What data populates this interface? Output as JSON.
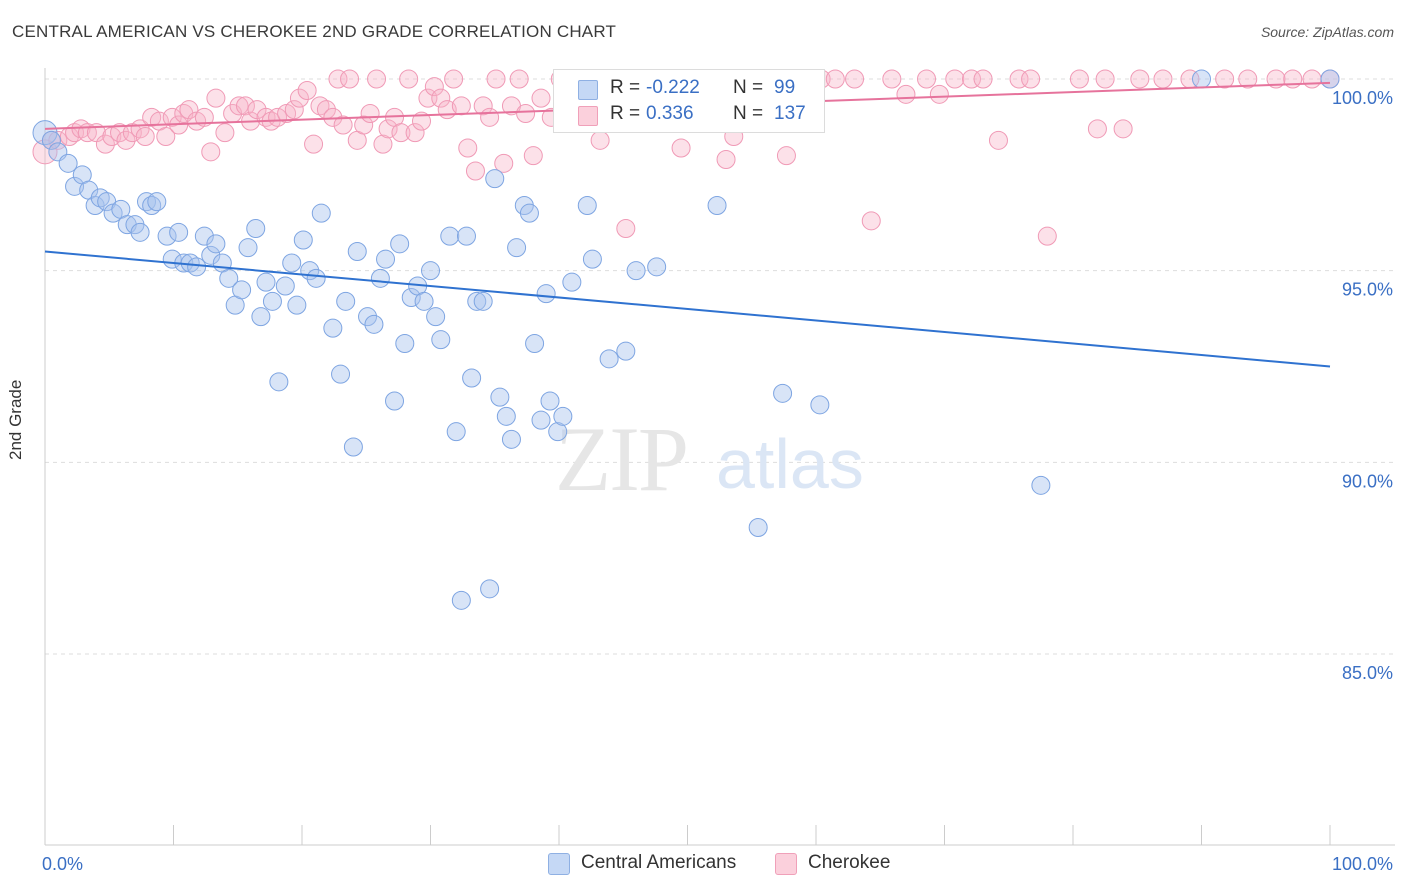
{
  "title": "CENTRAL AMERICAN VS CHEROKEE 2ND GRADE CORRELATION CHART",
  "source": "Source: ZipAtlas.com",
  "watermark": {
    "zip": "ZIP",
    "atlas": "atlas"
  },
  "legend": {
    "rows": [
      {
        "r_label": "R =",
        "r_value": "-0.222",
        "n_label": "N =",
        "n_value": "99",
        "color": "#a9c4ee"
      },
      {
        "r_label": "R =",
        "r_value": "0.336",
        "n_label": "N =",
        "n_value": "137",
        "color": "#f7b4c8"
      }
    ]
  },
  "bottom_legend": [
    "Central Americans",
    "Cherokee"
  ],
  "chart_data": {
    "type": "scatter",
    "title": "CENTRAL AMERICAN VS CHEROKEE 2ND GRADE CORRELATION CHART",
    "xlabel": "",
    "ylabel": "2nd Grade",
    "xlim": [
      0,
      100
    ],
    "ylim": [
      80.5,
      100.8
    ],
    "x_tick_labels": [
      "0.0%",
      "100.0%"
    ],
    "y_ticks": [
      85.0,
      90.0,
      95.0,
      100.0
    ],
    "y_tick_labels": [
      "85.0%",
      "90.0%",
      "95.0%",
      "100.0%"
    ],
    "grid": true,
    "legend_position": "top-center",
    "colors": {
      "blue": "#3d7dd6",
      "blue_fill": "#a9c4ee",
      "pink": "#e9709b",
      "pink_fill": "#f7b4c8"
    },
    "series": [
      {
        "name": "Central Americans",
        "color": "#3d7dd6",
        "trend": {
          "x": [
            0,
            100
          ],
          "y": [
            95.5,
            92.5
          ]
        },
        "points": [
          [
            0,
            98.6
          ],
          [
            0.5,
            98.4
          ],
          [
            1.0,
            98.1
          ],
          [
            1.8,
            97.8
          ],
          [
            2.3,
            97.2
          ],
          [
            2.9,
            97.5
          ],
          [
            3.4,
            97.1
          ],
          [
            3.9,
            96.7
          ],
          [
            4.3,
            96.9
          ],
          [
            4.8,
            96.8
          ],
          [
            5.3,
            96.5
          ],
          [
            5.9,
            96.6
          ],
          [
            6.4,
            96.2
          ],
          [
            7.0,
            96.2
          ],
          [
            7.4,
            96.0
          ],
          [
            7.9,
            96.8
          ],
          [
            8.3,
            96.7
          ],
          [
            8.7,
            96.8
          ],
          [
            9.5,
            95.9
          ],
          [
            9.9,
            95.3
          ],
          [
            10.4,
            96.0
          ],
          [
            10.8,
            95.2
          ],
          [
            11.3,
            95.2
          ],
          [
            11.8,
            95.1
          ],
          [
            12.4,
            95.9
          ],
          [
            12.9,
            95.4
          ],
          [
            13.3,
            95.7
          ],
          [
            13.8,
            95.2
          ],
          [
            14.3,
            94.8
          ],
          [
            14.8,
            94.1
          ],
          [
            15.3,
            94.5
          ],
          [
            15.8,
            95.6
          ],
          [
            16.4,
            96.1
          ],
          [
            16.8,
            93.8
          ],
          [
            17.2,
            94.7
          ],
          [
            17.7,
            94.2
          ],
          [
            18.2,
            92.1
          ],
          [
            18.7,
            94.6
          ],
          [
            19.2,
            95.2
          ],
          [
            19.6,
            94.1
          ],
          [
            20.1,
            95.8
          ],
          [
            20.6,
            95.0
          ],
          [
            21.1,
            94.8
          ],
          [
            21.5,
            96.5
          ],
          [
            22.4,
            93.5
          ],
          [
            23.0,
            92.3
          ],
          [
            23.4,
            94.2
          ],
          [
            24.0,
            90.4
          ],
          [
            24.3,
            95.5
          ],
          [
            25.1,
            93.8
          ],
          [
            25.6,
            93.6
          ],
          [
            26.1,
            94.8
          ],
          [
            26.5,
            95.3
          ],
          [
            27.2,
            91.6
          ],
          [
            27.6,
            95.7
          ],
          [
            28.0,
            93.1
          ],
          [
            28.5,
            94.3
          ],
          [
            29.0,
            94.6
          ],
          [
            29.5,
            94.2
          ],
          [
            30.0,
            95.0
          ],
          [
            30.4,
            93.8
          ],
          [
            30.8,
            93.2
          ],
          [
            31.5,
            95.9
          ],
          [
            32.0,
            90.8
          ],
          [
            32.4,
            86.4
          ],
          [
            32.8,
            95.9
          ],
          [
            33.2,
            92.2
          ],
          [
            33.6,
            94.2
          ],
          [
            34.1,
            94.2
          ],
          [
            34.6,
            86.7
          ],
          [
            35.0,
            97.4
          ],
          [
            35.4,
            91.7
          ],
          [
            35.9,
            91.2
          ],
          [
            36.3,
            90.6
          ],
          [
            36.7,
            95.6
          ],
          [
            37.3,
            96.7
          ],
          [
            37.7,
            96.5
          ],
          [
            38.1,
            93.1
          ],
          [
            38.6,
            91.1
          ],
          [
            39.0,
            94.4
          ],
          [
            39.3,
            91.6
          ],
          [
            39.9,
            90.8
          ],
          [
            40.3,
            91.2
          ],
          [
            41.0,
            94.7
          ],
          [
            42.2,
            96.7
          ],
          [
            42.6,
            95.3
          ],
          [
            43.9,
            92.7
          ],
          [
            45.2,
            92.9
          ],
          [
            46.0,
            95.0
          ],
          [
            47.6,
            95.1
          ],
          [
            52.3,
            96.7
          ],
          [
            55.5,
            88.3
          ],
          [
            57.4,
            91.8
          ],
          [
            60.3,
            91.5
          ],
          [
            77.5,
            89.4
          ],
          [
            90,
            100.0
          ],
          [
            100,
            100.0
          ]
        ]
      },
      {
        "name": "Cherokee",
        "color": "#e9709b",
        "trend": {
          "x": [
            0,
            100
          ],
          "y": [
            98.7,
            99.9
          ]
        },
        "points": [
          [
            0,
            98.1
          ],
          [
            0.5,
            98.4
          ],
          [
            1.0,
            98.4
          ],
          [
            1.9,
            98.5
          ],
          [
            2.3,
            98.6
          ],
          [
            2.8,
            98.7
          ],
          [
            3.3,
            98.6
          ],
          [
            4.0,
            98.6
          ],
          [
            4.7,
            98.3
          ],
          [
            5.2,
            98.5
          ],
          [
            5.8,
            98.6
          ],
          [
            6.3,
            98.4
          ],
          [
            6.8,
            98.6
          ],
          [
            7.4,
            98.7
          ],
          [
            7.8,
            98.5
          ],
          [
            8.3,
            99.0
          ],
          [
            8.9,
            98.9
          ],
          [
            9.4,
            98.5
          ],
          [
            9.9,
            99.0
          ],
          [
            10.4,
            98.8
          ],
          [
            10.8,
            99.1
          ],
          [
            11.2,
            99.2
          ],
          [
            11.8,
            98.9
          ],
          [
            12.4,
            99.0
          ],
          [
            12.9,
            98.1
          ],
          [
            13.3,
            99.5
          ],
          [
            14.0,
            98.6
          ],
          [
            14.6,
            99.1
          ],
          [
            15.1,
            99.3
          ],
          [
            15.6,
            99.3
          ],
          [
            16.0,
            98.9
          ],
          [
            16.5,
            99.2
          ],
          [
            17.2,
            99.0
          ],
          [
            17.6,
            98.9
          ],
          [
            18.1,
            99.0
          ],
          [
            18.8,
            99.1
          ],
          [
            19.4,
            99.2
          ],
          [
            19.8,
            99.5
          ],
          [
            20.4,
            99.7
          ],
          [
            20.9,
            98.3
          ],
          [
            21.4,
            99.3
          ],
          [
            21.9,
            99.2
          ],
          [
            22.4,
            99.0
          ],
          [
            22.8,
            100.0
          ],
          [
            23.2,
            98.8
          ],
          [
            23.7,
            100.0
          ],
          [
            24.3,
            98.4
          ],
          [
            24.8,
            98.8
          ],
          [
            25.3,
            99.1
          ],
          [
            25.8,
            100.0
          ],
          [
            26.3,
            98.3
          ],
          [
            26.7,
            98.7
          ],
          [
            27.2,
            99.0
          ],
          [
            27.7,
            98.6
          ],
          [
            28.3,
            100.0
          ],
          [
            28.8,
            98.6
          ],
          [
            29.3,
            98.9
          ],
          [
            29.8,
            99.5
          ],
          [
            30.3,
            99.8
          ],
          [
            30.8,
            99.5
          ],
          [
            31.3,
            99.2
          ],
          [
            31.8,
            100.0
          ],
          [
            32.4,
            99.3
          ],
          [
            32.9,
            98.2
          ],
          [
            33.5,
            97.6
          ],
          [
            34.1,
            99.3
          ],
          [
            34.6,
            99.0
          ],
          [
            35.1,
            100.0
          ],
          [
            35.7,
            97.8
          ],
          [
            36.3,
            99.3
          ],
          [
            36.9,
            100.0
          ],
          [
            37.4,
            99.1
          ],
          [
            38.0,
            98.0
          ],
          [
            38.6,
            99.5
          ],
          [
            39.4,
            99.0
          ],
          [
            40.1,
            100.0
          ],
          [
            40.7,
            99.3
          ],
          [
            41.3,
            99.3
          ],
          [
            41.9,
            100.0
          ],
          [
            42.5,
            99.1
          ],
          [
            43.2,
            98.4
          ],
          [
            44.0,
            100.0
          ],
          [
            44.7,
            98.9
          ],
          [
            45.2,
            96.1
          ],
          [
            46.3,
            100.0
          ],
          [
            47.0,
            100.0
          ],
          [
            48.2,
            100.0
          ],
          [
            49.5,
            98.2
          ],
          [
            50.4,
            100.0
          ],
          [
            51.1,
            99.4
          ],
          [
            52.2,
            100.0
          ],
          [
            53.0,
            97.9
          ],
          [
            53.6,
            98.5
          ],
          [
            55.0,
            100.0
          ],
          [
            56.1,
            100.0
          ],
          [
            57.7,
            98.0
          ],
          [
            58.6,
            100.0
          ],
          [
            59.2,
            100.0
          ],
          [
            60.4,
            100.0
          ],
          [
            61.5,
            100.0
          ],
          [
            63.0,
            100.0
          ],
          [
            64.3,
            96.3
          ],
          [
            65.9,
            100.0
          ],
          [
            67.0,
            99.6
          ],
          [
            68.6,
            100.0
          ],
          [
            69.6,
            99.6
          ],
          [
            70.8,
            100.0
          ],
          [
            72.1,
            100.0
          ],
          [
            73.0,
            100.0
          ],
          [
            74.2,
            98.4
          ],
          [
            75.8,
            100.0
          ],
          [
            76.7,
            100.0
          ],
          [
            78.0,
            95.9
          ],
          [
            80.5,
            100.0
          ],
          [
            81.9,
            98.7
          ],
          [
            82.5,
            100.0
          ],
          [
            83.9,
            98.7
          ],
          [
            85.2,
            100.0
          ],
          [
            87.0,
            100.0
          ],
          [
            89.1,
            100.0
          ],
          [
            91.8,
            100.0
          ],
          [
            93.6,
            100.0
          ],
          [
            95.8,
            100.0
          ],
          [
            97.1,
            100.0
          ],
          [
            98.6,
            100.0
          ],
          [
            100,
            100.0
          ]
        ]
      }
    ]
  }
}
